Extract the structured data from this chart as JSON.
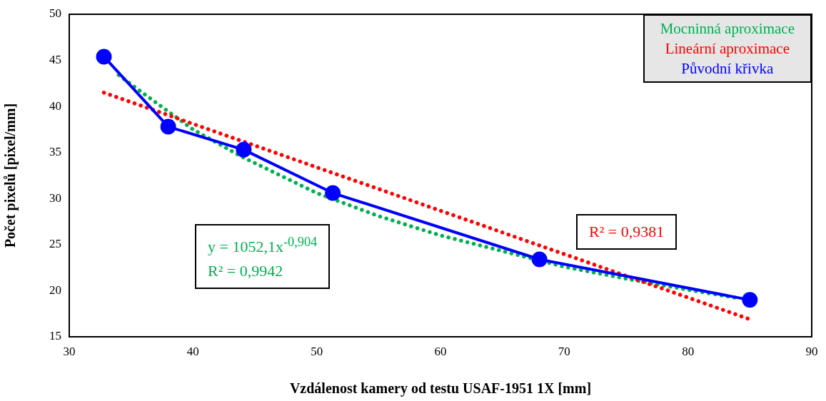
{
  "chart_data": {
    "type": "line",
    "xlabel": "Vzdálenost kamery od testu USAF-1951 1X [mm]",
    "ylabel": "Počet pixelů [pixel/mm]",
    "xlim": [
      30,
      90
    ],
    "xticks": [
      30,
      40,
      50,
      60,
      70,
      80,
      90
    ],
    "ylim": [
      15,
      50
    ],
    "yticks": [
      15,
      20,
      25,
      30,
      35,
      40,
      45,
      50
    ],
    "grid": false,
    "legend": "top right",
    "series": [
      {
        "name": "Mocninná aproximace",
        "color": "#00b050",
        "marker": "none",
        "line_style": "dotted",
        "x": [
          34,
          36,
          40,
          44,
          50,
          55,
          60,
          65,
          70,
          75,
          80,
          84
        ],
        "values": [
          43.4,
          41.4,
          37.5,
          34.5,
          30.6,
          28.1,
          26.0,
          24.3,
          22.6,
          21.3,
          20.1,
          19.2
        ]
      },
      {
        "name": "Lineární aproximace",
        "color": "#ff0000",
        "marker": "none",
        "line_style": "dotted",
        "x": [
          32.8,
          85
        ],
        "values": [
          41.5,
          16.9
        ]
      },
      {
        "name": "Původní křivka",
        "color": "#0000ff",
        "marker": "circle",
        "line_style": "solid",
        "x": [
          32.8,
          38.0,
          44.1,
          51.3,
          68.0,
          85.0
        ],
        "values": [
          45.4,
          37.8,
          35.3,
          30.6,
          23.4,
          19.0
        ]
      }
    ],
    "annotations": [
      "y = 1052,1x$^{-0,904}$",
      "R² = 0,9942",
      "R² = 0,9381"
    ]
  }
}
